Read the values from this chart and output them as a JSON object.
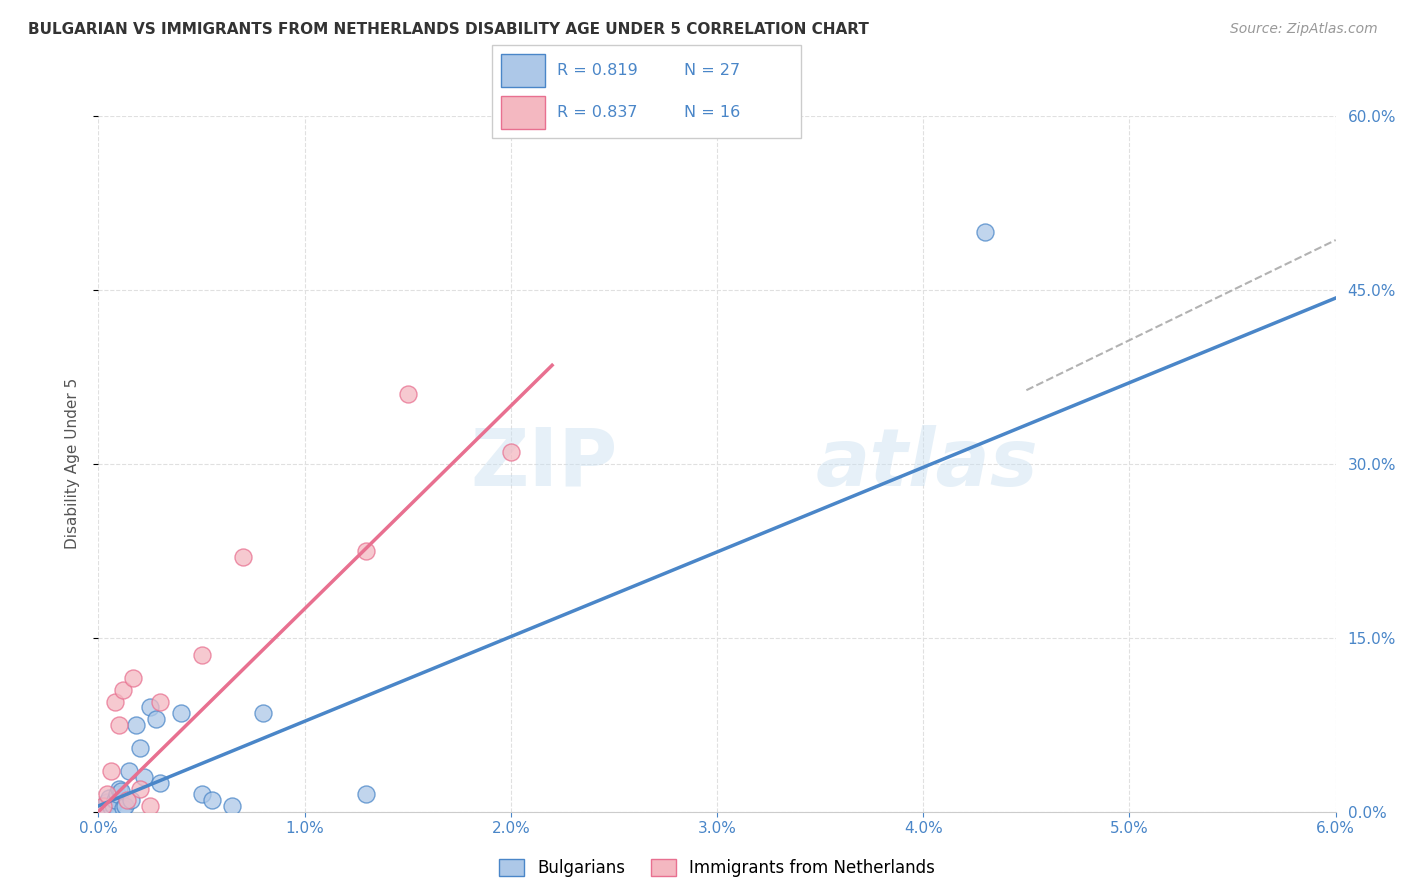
{
  "title": "BULGARIAN VS IMMIGRANTS FROM NETHERLANDS DISABILITY AGE UNDER 5 CORRELATION CHART",
  "source": "Source: ZipAtlas.com",
  "ylabel": "Disability Age Under 5",
  "xlim": [
    0.0,
    6.0
  ],
  "ylim": [
    0.0,
    60.0
  ],
  "xticks": [
    0.0,
    1.0,
    2.0,
    3.0,
    4.0,
    5.0,
    6.0
  ],
  "yticks": [
    0.0,
    15.0,
    30.0,
    45.0,
    60.0
  ],
  "blue_color": "#adc8e8",
  "pink_color": "#f4b8c1",
  "blue_line_color": "#4a86c8",
  "pink_line_color": "#e87090",
  "r_blue": 0.819,
  "n_blue": 27,
  "r_pink": 0.837,
  "n_pink": 16,
  "blue_points_x": [
    0.02,
    0.03,
    0.04,
    0.05,
    0.06,
    0.07,
    0.08,
    0.09,
    0.1,
    0.11,
    0.12,
    0.13,
    0.15,
    0.16,
    0.18,
    0.2,
    0.22,
    0.25,
    0.28,
    0.3,
    0.4,
    0.5,
    0.55,
    0.65,
    0.8,
    1.3,
    4.3
  ],
  "blue_points_y": [
    0.3,
    0.5,
    0.8,
    1.2,
    0.4,
    0.6,
    1.0,
    1.5,
    2.0,
    1.8,
    0.3,
    0.5,
    3.5,
    1.0,
    7.5,
    5.5,
    3.0,
    9.0,
    8.0,
    2.5,
    8.5,
    1.5,
    1.0,
    0.5,
    8.5,
    1.5,
    50.0
  ],
  "pink_points_x": [
    0.02,
    0.04,
    0.06,
    0.08,
    0.1,
    0.12,
    0.14,
    0.17,
    0.2,
    0.25,
    0.3,
    0.5,
    0.7,
    1.3,
    1.5,
    2.0
  ],
  "pink_points_y": [
    0.5,
    1.5,
    3.5,
    9.5,
    7.5,
    10.5,
    1.0,
    11.5,
    2.0,
    0.5,
    9.5,
    13.5,
    22.0,
    22.5,
    36.0,
    31.0
  ],
  "blue_line_x": [
    0.0,
    6.0
  ],
  "blue_line_y_start": 0.5,
  "blue_line_slope": 7.3,
  "pink_line_x": [
    0.0,
    2.2
  ],
  "pink_line_y_start": 0.0,
  "pink_line_slope": 17.5,
  "dashed_line_x_start": 4.5,
  "dashed_line_x_end": 6.0,
  "watermark_zip": "ZIP",
  "watermark_atlas": "atlas",
  "background_color": "#ffffff",
  "grid_color": "#e0e0e0",
  "tick_color": "#4a86c8",
  "title_color": "#333333",
  "source_color": "#999999",
  "ylabel_color": "#555555"
}
